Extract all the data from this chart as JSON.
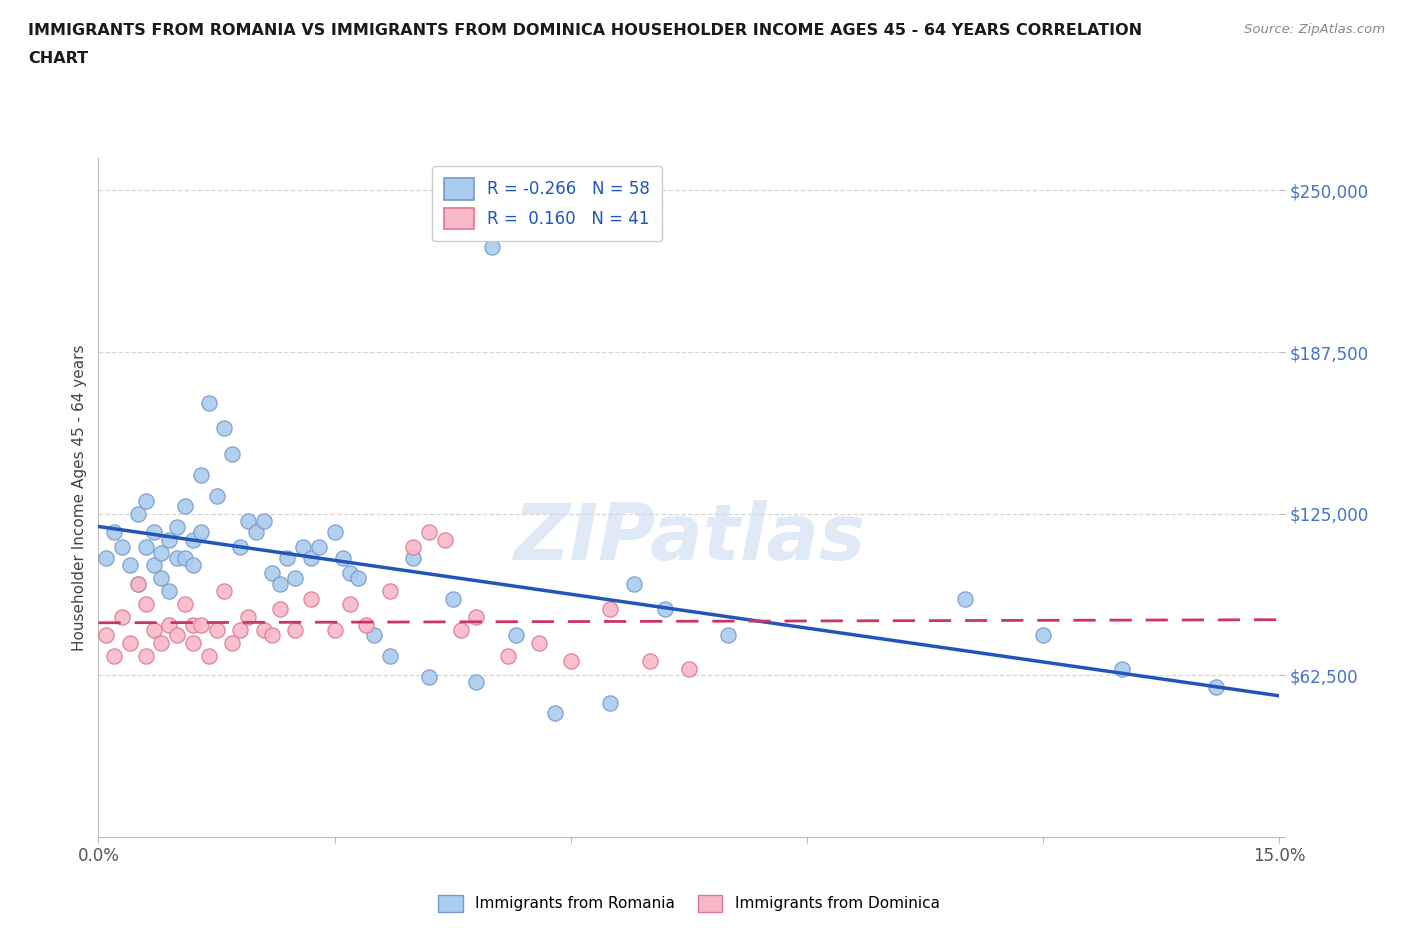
{
  "title_line1": "IMMIGRANTS FROM ROMANIA VS IMMIGRANTS FROM DOMINICA HOUSEHOLDER INCOME AGES 45 - 64 YEARS CORRELATION",
  "title_line2": "CHART",
  "source_text": "Source: ZipAtlas.com",
  "ylabel": "Householder Income Ages 45 - 64 years",
  "xlim": [
    0.0,
    0.15
  ],
  "ylim": [
    0,
    262500
  ],
  "xticks": [
    0.0,
    0.03,
    0.06,
    0.09,
    0.12,
    0.15
  ],
  "xticklabels": [
    "0.0%",
    "",
    "",
    "",
    "",
    "15.0%"
  ],
  "yticks": [
    0,
    62500,
    125000,
    187500,
    250000
  ],
  "yticklabels": [
    "",
    "$62,500",
    "$125,000",
    "$187,500",
    "$250,000"
  ],
  "romania_color": "#aaccee",
  "romania_edge": "#7799cc",
  "dominica_color": "#f8b8c8",
  "dominica_edge": "#dd7799",
  "trend_romania_color": "#2255bb",
  "trend_dominica_color": "#cc3366",
  "R_romania": -0.266,
  "N_romania": 58,
  "R_dominica": 0.16,
  "N_dominica": 41,
  "watermark": "ZIPatlas",
  "watermark_color": "#ccddf0",
  "grid_color": "#cccccc",
  "romania_x": [
    0.001,
    0.002,
    0.003,
    0.004,
    0.005,
    0.005,
    0.006,
    0.006,
    0.007,
    0.007,
    0.008,
    0.008,
    0.009,
    0.009,
    0.01,
    0.01,
    0.011,
    0.011,
    0.012,
    0.012,
    0.013,
    0.013,
    0.014,
    0.015,
    0.016,
    0.017,
    0.018,
    0.019,
    0.02,
    0.021,
    0.022,
    0.023,
    0.024,
    0.025,
    0.026,
    0.027,
    0.028,
    0.03,
    0.031,
    0.032,
    0.033,
    0.035,
    0.037,
    0.04,
    0.042,
    0.045,
    0.048,
    0.05,
    0.053,
    0.058,
    0.065,
    0.068,
    0.072,
    0.08,
    0.11,
    0.12,
    0.13,
    0.142
  ],
  "romania_y": [
    108000,
    118000,
    112000,
    105000,
    125000,
    98000,
    130000,
    112000,
    118000,
    105000,
    110000,
    100000,
    115000,
    95000,
    120000,
    108000,
    128000,
    108000,
    115000,
    105000,
    140000,
    118000,
    168000,
    132000,
    158000,
    148000,
    112000,
    122000,
    118000,
    122000,
    102000,
    98000,
    108000,
    100000,
    112000,
    108000,
    112000,
    118000,
    108000,
    102000,
    100000,
    78000,
    70000,
    108000,
    62000,
    92000,
    60000,
    228000,
    78000,
    48000,
    52000,
    98000,
    88000,
    78000,
    92000,
    78000,
    65000,
    58000
  ],
  "dominica_x": [
    0.001,
    0.002,
    0.003,
    0.004,
    0.005,
    0.006,
    0.006,
    0.007,
    0.008,
    0.009,
    0.01,
    0.011,
    0.012,
    0.012,
    0.013,
    0.014,
    0.015,
    0.016,
    0.017,
    0.018,
    0.019,
    0.021,
    0.022,
    0.023,
    0.025,
    0.027,
    0.03,
    0.032,
    0.034,
    0.037,
    0.04,
    0.042,
    0.044,
    0.046,
    0.048,
    0.052,
    0.056,
    0.06,
    0.065,
    0.07,
    0.075
  ],
  "dominica_y": [
    78000,
    70000,
    85000,
    75000,
    98000,
    90000,
    70000,
    80000,
    75000,
    82000,
    78000,
    90000,
    75000,
    82000,
    82000,
    70000,
    80000,
    95000,
    75000,
    80000,
    85000,
    80000,
    78000,
    88000,
    80000,
    92000,
    80000,
    90000,
    82000,
    95000,
    112000,
    118000,
    115000,
    80000,
    85000,
    70000,
    75000,
    68000,
    88000,
    68000,
    65000
  ]
}
